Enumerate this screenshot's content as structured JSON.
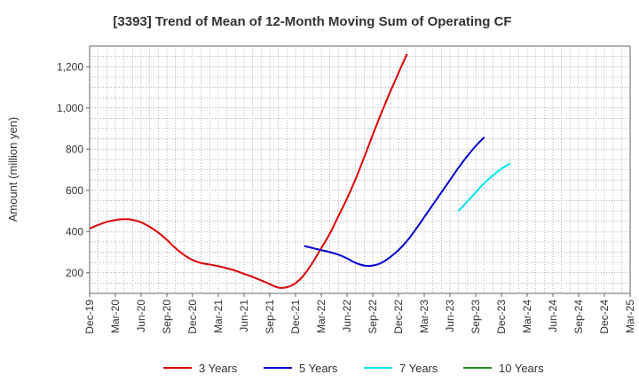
{
  "chart_data": {
    "type": "line",
    "title": "[3393]  Trend of Mean of 12-Month Moving Sum of Operating CF",
    "xlabel": "",
    "ylabel": "Amount (million yen)",
    "x_tick_labels": [
      "Dec-19",
      "Mar-20",
      "Jun-20",
      "Sep-20",
      "Dec-20",
      "Mar-21",
      "Jun-21",
      "Sep-21",
      "Dec-21",
      "Mar-22",
      "Jun-22",
      "Sep-22",
      "Dec-22",
      "Mar-23",
      "Jun-23",
      "Sep-23",
      "Dec-23",
      "Mar-24",
      "Jun-24",
      "Sep-24",
      "Dec-24",
      "Mar-25"
    ],
    "y_ticks": [
      200,
      400,
      600,
      800,
      1000,
      1200
    ],
    "y_tick_labels": [
      "200",
      "400",
      "600",
      "800",
      "1,000",
      "1,200"
    ],
    "ylim": [
      100,
      1300
    ],
    "grid": true,
    "legend_position": "bottom",
    "series": [
      {
        "name": "3 Years",
        "color": "#dd0000",
        "start_index": 0,
        "values": [
          415,
          432,
          447,
          456,
          460,
          457,
          445,
          423,
          395,
          360,
          320,
          287,
          262,
          247,
          240,
          232,
          222,
          210,
          195,
          180,
          163,
          145,
          128,
          130,
          150,
          190,
          250,
          320,
          390,
          475,
          560,
          655,
          760,
          870,
          975,
          1075,
          1170,
          1262
        ]
      },
      {
        "name": "5 Years",
        "color": "#0000cc",
        "start_index": 25,
        "values": [
          330,
          320,
          310,
          300,
          288,
          270,
          248,
          235,
          235,
          248,
          275,
          310,
          355,
          410,
          470,
          530,
          590,
          650,
          710,
          765,
          815,
          858
        ]
      },
      {
        "name": "7 Years",
        "color": "#00e5ee",
        "start_index": 43,
        "values": [
          500,
          545,
          590,
          635,
          672,
          705,
          730
        ]
      },
      {
        "name": "10 Years",
        "color": "#228b22",
        "start_index": 0,
        "values": []
      }
    ]
  }
}
